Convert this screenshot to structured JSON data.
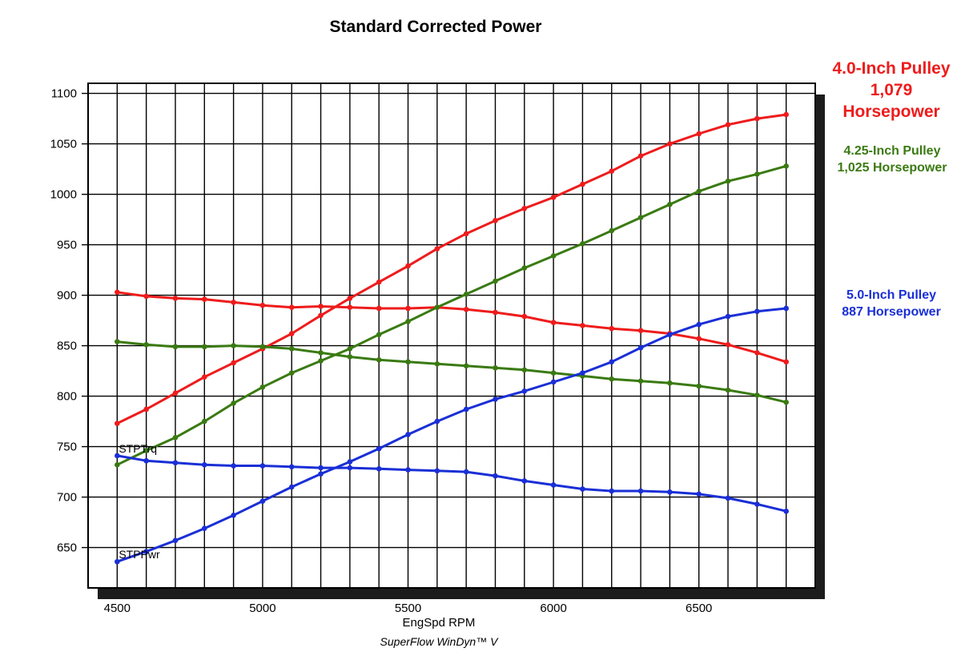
{
  "chart_data": {
    "type": "line",
    "title": "Standard Corrected Power",
    "xlabel": "EngSpd RPM",
    "footer": "SuperFlow WinDyn™ V",
    "xlim": [
      4400,
      6900
    ],
    "ylim": [
      610,
      1110
    ],
    "x_ticks": [
      4500,
      5000,
      5500,
      6000,
      6500
    ],
    "y_ticks": [
      650,
      700,
      750,
      800,
      850,
      900,
      950,
      1000,
      1050,
      1100
    ],
    "x_gridlines": [
      4500,
      4600,
      4700,
      4800,
      4900,
      5000,
      5100,
      5200,
      5300,
      5400,
      5500,
      5600,
      5700,
      5800,
      5900,
      6000,
      6100,
      6200,
      6300,
      6400,
      6500,
      6600,
      6700,
      6800
    ],
    "grid": true,
    "curve_labels": [
      {
        "text": "STPTrq",
        "x": 4500,
        "y": 741
      },
      {
        "text": "STPPwr",
        "x": 4500,
        "y": 636
      }
    ],
    "x": [
      4500,
      4600,
      4700,
      4800,
      4900,
      5000,
      5100,
      5200,
      5300,
      5400,
      5500,
      5600,
      5700,
      5800,
      5900,
      6000,
      6100,
      6200,
      6300,
      6400,
      6500,
      6600,
      6700,
      6800
    ],
    "series": [
      {
        "color": "#ee1c1c",
        "kind": "power",
        "values": [
          773,
          787,
          803,
          819,
          833,
          847,
          862,
          880,
          897,
          913,
          929,
          946,
          961,
          974,
          986,
          997,
          1010,
          1023,
          1038,
          1050,
          1060,
          1069,
          1075,
          1079
        ]
      },
      {
        "color": "#ee1c1c",
        "kind": "torque",
        "values": [
          903,
          899,
          897,
          896,
          893,
          890,
          888,
          889,
          888,
          887,
          887,
          888,
          886,
          883,
          879,
          873,
          870,
          867,
          865,
          862,
          857,
          851,
          843,
          834
        ]
      },
      {
        "color": "#3a7a12",
        "kind": "power",
        "values": [
          732,
          746,
          759,
          775,
          793,
          809,
          823,
          835,
          847,
          861,
          874,
          888,
          901,
          914,
          927,
          939,
          951,
          964,
          977,
          990,
          1003,
          1013,
          1020,
          1028
        ]
      },
      {
        "color": "#3a7a12",
        "kind": "torque",
        "values": [
          854,
          851,
          849,
          849,
          850,
          849,
          847,
          843,
          839,
          836,
          834,
          832,
          830,
          828,
          826,
          823,
          820,
          817,
          815,
          813,
          810,
          806,
          801,
          794
        ]
      },
      {
        "color": "#1a2fd6",
        "kind": "power",
        "values": [
          636,
          646,
          657,
          669,
          682,
          696,
          710,
          723,
          735,
          748,
          762,
          775,
          787,
          797,
          805,
          814,
          823,
          834,
          848,
          861,
          871,
          879,
          884,
          887
        ]
      },
      {
        "color": "#1a2fd6",
        "kind": "torque",
        "values": [
          741,
          736,
          734,
          732,
          731,
          731,
          730,
          729,
          729,
          728,
          727,
          726,
          725,
          721,
          716,
          712,
          708,
          706,
          706,
          705,
          703,
          699,
          693,
          686
        ]
      }
    ]
  },
  "legend": [
    {
      "lines": [
        "4.0-Inch Pulley",
        "1,079",
        "Horsepower"
      ],
      "color": "#ee1c1c"
    },
    {
      "lines": [
        "4.25-Inch Pulley",
        "1,025 Horsepower"
      ],
      "color": "#3a7a12"
    },
    {
      "lines": [
        "5.0-Inch Pulley",
        "887 Horsepower"
      ],
      "color": "#1a2fd6"
    }
  ]
}
